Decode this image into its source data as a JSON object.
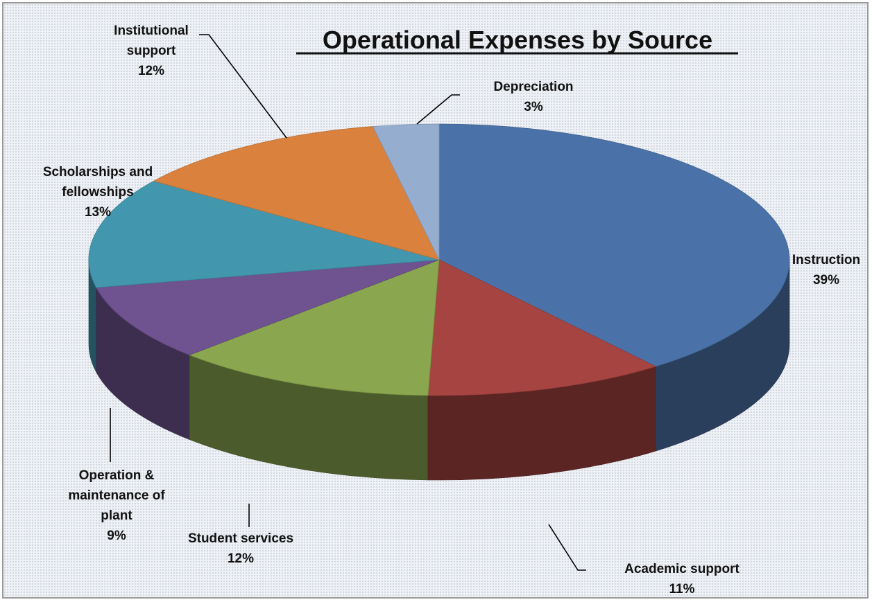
{
  "chart_data": {
    "type": "pie",
    "title": "Operational Expenses by Source",
    "three_d": true,
    "legend": "none",
    "slices": [
      {
        "label": "Instruction",
        "percent": 39,
        "value_text": "39%",
        "color": "#4a72a8"
      },
      {
        "label": "Academic support",
        "percent": 11,
        "value_text": "11%",
        "color": "#a64441"
      },
      {
        "label": "Student services",
        "percent": 12,
        "value_text": "12%",
        "color": "#8aa64e"
      },
      {
        "label": "Operation & maintenance of plant",
        "percent": 9,
        "value_text": "9%",
        "color": "#6e5390"
      },
      {
        "label": "Scholarships and fellowships",
        "percent": 13,
        "value_text": "13%",
        "color": "#4297ae"
      },
      {
        "label": "Institutional support",
        "percent": 12,
        "value_text": "12%",
        "color": "#d9813d"
      },
      {
        "label": "Depreciation",
        "percent": 3,
        "value_text": "3%",
        "color": "#95adce"
      }
    ]
  }
}
